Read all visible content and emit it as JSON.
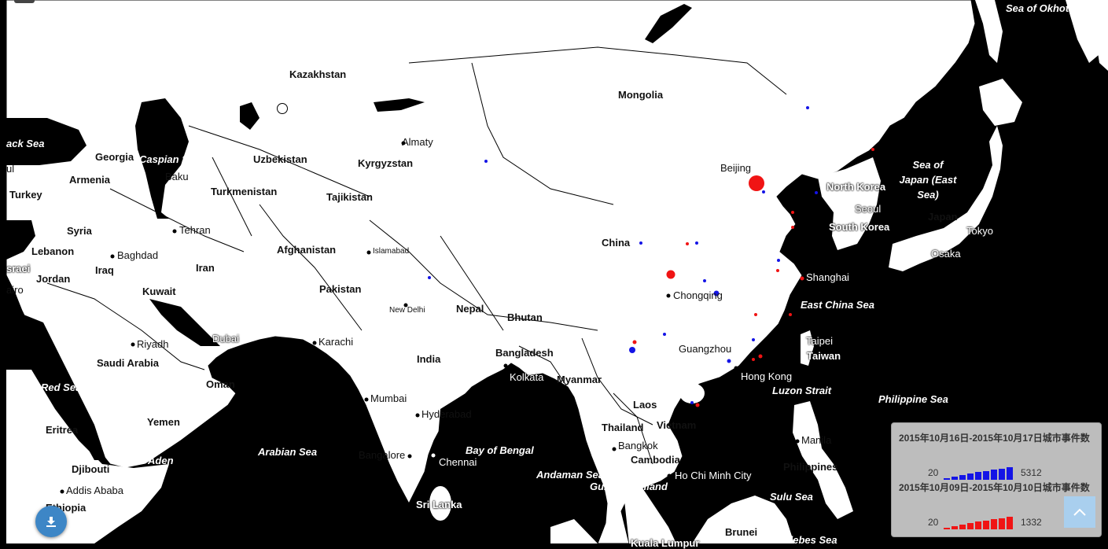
{
  "map": {
    "land_color": "#ffffff",
    "sea_color": "#000000",
    "countries": [
      "Kazakhstan",
      "Mongolia",
      "Georgia",
      "Armenia",
      "Uzbekistan",
      "Kyrgyzstan",
      "Turkmenistan",
      "Tajikistan",
      "Turkey",
      "Syria",
      "Lebanon",
      "Israel",
      "Jordan",
      "Iraq",
      "Iran",
      "Afghanistan",
      "Pakistan",
      "Kuwait",
      "Saudi Arabia",
      "China",
      "Nepal",
      "Bhutan",
      "India",
      "Bangladesh",
      "Myanmar",
      "North Korea",
      "South Korea",
      "Japan",
      "Taiwan",
      "Laos",
      "Thailand",
      "Vietnam",
      "Cambodia",
      "Philippines",
      "Oman",
      "Yemen",
      "Eritrea",
      "Djibouti",
      "Ethiopia",
      "Sri Lanka",
      "Brunei"
    ],
    "cities": [
      "Almaty",
      "Baku",
      "Tehran",
      "Baghdad",
      "Islamabad",
      "New Delhi",
      "Beijing",
      "Seoul",
      "Tokyo",
      "Osaka",
      "Shanghai",
      "Chongqing",
      "Guangzhou",
      "Hong Kong",
      "Taipei",
      "Karachi",
      "Dubai",
      "Riyadh",
      "Mumbai",
      "Hyderabad",
      "Bangalore",
      "Chennai",
      "Kolkata",
      "Bangkok",
      "Ho Chi Minh City",
      "Manila",
      "Addis Ababa"
    ],
    "seas": [
      "Sea of Okhotsk",
      "Black Sea",
      "Caspian Sea",
      "Sea of Japan (East Sea)",
      "East China Sea",
      "Luzon Strait",
      "Philippine Sea",
      "Red Sea",
      "Gulf of Aden",
      "Arabian Sea",
      "Bay of Bengal",
      "Andaman Sea",
      "Gulf of Thailand",
      "Sulu Sea",
      "Celebes Sea"
    ],
    "partial_labels": [
      "ack Sea",
      "ul",
      "sraei",
      "airo",
      "Kuala Lumpur"
    ]
  },
  "legend": {
    "period1": {
      "title": "2015年10月16日-2015年10月17日城市事件数",
      "min": "20",
      "max": "5312",
      "color": "#1414e6",
      "levels": [
        0.15,
        0.28,
        0.4,
        0.5,
        0.6,
        0.7,
        0.8,
        0.9,
        1.0
      ]
    },
    "period2": {
      "title": "2015年10月09日-2015年10月10日城市事件数",
      "min": "20",
      "max": "1332",
      "color": "#f01414",
      "levels": [
        0.15,
        0.28,
        0.4,
        0.5,
        0.6,
        0.7,
        0.8,
        0.9,
        1.0
      ]
    }
  },
  "icons": {
    "download": "download-icon",
    "back_to_top": "chevron-up-icon"
  }
}
